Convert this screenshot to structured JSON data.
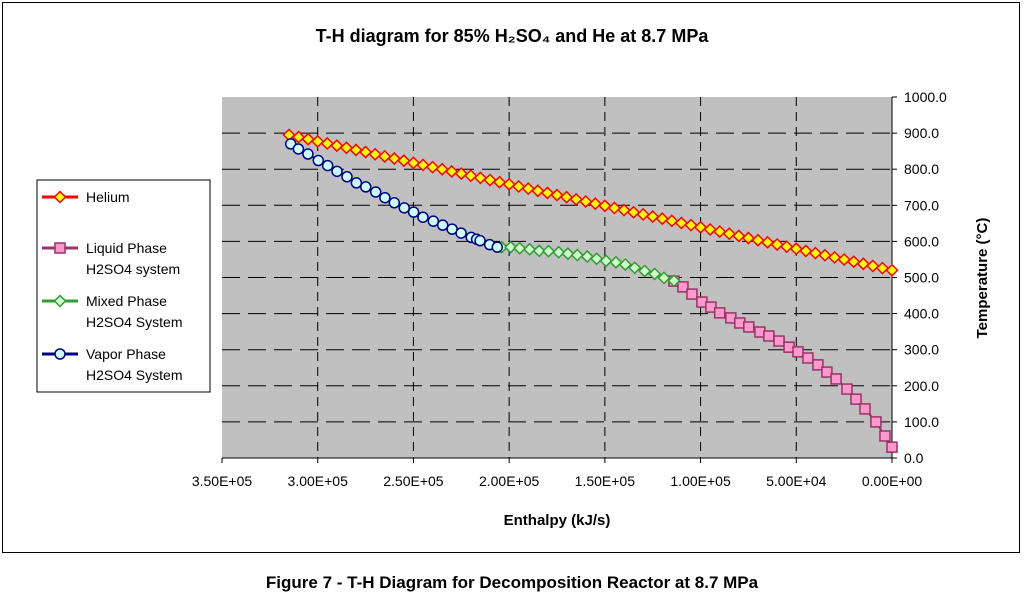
{
  "chart_data": {
    "type": "scatter",
    "title": "T-H diagram for 85% H₂SO₄ and He at 8.7 MPa",
    "xlabel": "Enthalpy (kJ/s)",
    "ylabel": "Temperature (°C)",
    "xlim": [
      350000,
      0
    ],
    "ylim": [
      0,
      1000
    ],
    "x_reversed": true,
    "grid": true,
    "legend_position": "left",
    "x_ticks": [
      350000,
      300000,
      250000,
      200000,
      150000,
      100000,
      50000,
      0
    ],
    "x_tick_labels": [
      "3.50E+05",
      "3.00E+05",
      "2.50E+05",
      "2.00E+05",
      "1.50E+05",
      "1.00E+05",
      "5.00E+04",
      "0.00E+00"
    ],
    "y_ticks": [
      0,
      100,
      200,
      300,
      400,
      500,
      600,
      700,
      800,
      900,
      1000
    ],
    "y_tick_labels": [
      "0.0",
      "100.0",
      "200.0",
      "300.0",
      "400.0",
      "500.0",
      "600.0",
      "700.0",
      "800.0",
      "900.0",
      "1000.0"
    ],
    "series": [
      {
        "name": "Helium",
        "marker": "diamond",
        "line_color": "#ff0000",
        "fill": "#ffff00",
        "stroke": "#ff0000",
        "x": [
          315000,
          310000,
          305000,
          300000,
          295000,
          290000,
          285000,
          280000,
          275000,
          270000,
          265000,
          260000,
          255000,
          250000,
          245000,
          240000,
          235000,
          230000,
          225000,
          220000,
          215000,
          210000,
          205000,
          200000,
          195000,
          190000,
          185000,
          180000,
          175000,
          170000,
          165000,
          160000,
          155000,
          150000,
          145000,
          140000,
          135000,
          130000,
          125000,
          120000,
          115000,
          110000,
          105000,
          100000,
          95000,
          90000,
          85000,
          80000,
          75000,
          70000,
          65000,
          60000,
          55000,
          50000,
          45000,
          40000,
          35000,
          30000,
          25000,
          20000,
          15000,
          10000,
          5000,
          0
        ],
        "y": [
          895,
          889.0,
          883.1,
          877.1,
          871.2,
          865.2,
          859.3,
          853.3,
          847.4,
          841.4,
          835.5,
          829.5,
          823.6,
          817.6,
          811.7,
          805.7,
          799.8,
          793.8,
          787.9,
          781.9,
          776.0,
          770.0,
          764.0,
          758.1,
          752.1,
          746.2,
          740.2,
          734.3,
          728.3,
          722.4,
          716.4,
          710.5,
          704.5,
          698.6,
          692.6,
          686.7,
          680.7,
          674.8,
          668.8,
          662.9,
          656.9,
          651.0,
          645.0,
          639.0,
          633.1,
          627.1,
          621.2,
          615.2,
          609.3,
          603.3,
          597.4,
          591.4,
          585.5,
          579.5,
          573.6,
          567.6,
          561.7,
          555.7,
          549.8,
          543.8,
          537.9,
          531.9,
          526.0,
          520
        ]
      },
      {
        "name": "Liquid Phase H2SO4 system",
        "marker": "square",
        "line_color": "#993366",
        "fill": "#ff99cc",
        "stroke": "#993366",
        "x": [
          113900,
          109200,
          104500,
          99300,
          94600,
          90000,
          84200,
          79500,
          74800,
          69000,
          64300,
          59000,
          53800,
          49100,
          43900,
          38700,
          34000,
          29200,
          23500,
          18800,
          14100,
          8400,
          3700,
          0
        ],
        "y": [
          490,
          474,
          454,
          432,
          418,
          402,
          388,
          374,
          363,
          349,
          338,
          324,
          307,
          294,
          277,
          258,
          238,
          219,
          191,
          163,
          136,
          100,
          61,
          30
        ]
      },
      {
        "name": "Mixed Phase H2SO4 System",
        "marker": "diamond",
        "line_color": "#339933",
        "fill": "#ccffcc",
        "stroke": "#339933",
        "x": [
          203900,
          199200,
          194500,
          189300,
          184300,
          179400,
          174100,
          169300,
          164400,
          159200,
          154300,
          149400,
          144200,
          139300,
          134400,
          129200,
          124000,
          119100,
          113900
        ],
        "y": [
          584,
          584,
          581,
          578,
          574,
          573,
          570,
          566,
          562,
          558,
          552,
          546,
          542,
          536,
          527,
          518,
          510,
          499,
          491
        ]
      },
      {
        "name": "Vapor Phase H2SO4 System",
        "marker": "circle",
        "line_color": "#000080",
        "fill": "#ccffff",
        "stroke": "#000080",
        "x": [
          314100,
          310100,
          305100,
          299700,
          294800,
          289900,
          284700,
          279800,
          274900,
          269700,
          264900,
          260000,
          254800,
          249900,
          245000,
          239600,
          234700,
          229800,
          225100,
          219800,
          217000,
          215200,
          210200,
          206200
        ],
        "y": [
          870,
          856,
          842,
          824,
          810,
          794,
          779,
          762,
          751,
          737,
          721,
          707,
          693,
          681,
          667,
          656,
          645,
          634,
          623,
          611,
          606,
          602,
          591,
          584
        ]
      }
    ],
    "legend": [
      {
        "line1": "Helium",
        "line2": ""
      },
      {
        "line1": "Liquid Phase",
        "line2": "H2SO4 system"
      },
      {
        "line1": "Mixed Phase",
        "line2": "H2SO4 System"
      },
      {
        "line1": "Vapor Phase",
        "line2": "H2SO4 System"
      }
    ]
  },
  "caption": "Figure 7 - T-H Diagram for Decomposition Reactor at 8.7 MPa"
}
